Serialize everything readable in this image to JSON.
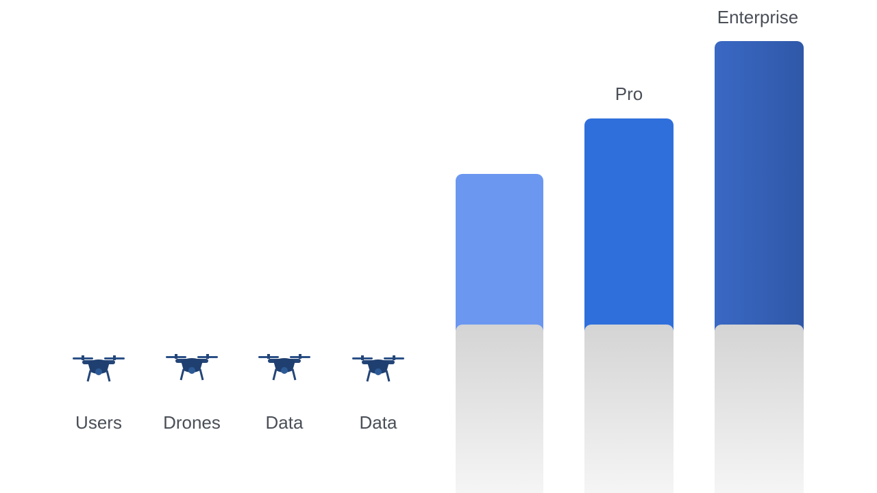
{
  "features": [
    {
      "label": "Users"
    },
    {
      "label": "Drones"
    },
    {
      "label": "Data"
    },
    {
      "label": "Data"
    }
  ],
  "tiers": [
    {
      "label": "Pro"
    },
    {
      "label": "Enterprise"
    }
  ]
}
